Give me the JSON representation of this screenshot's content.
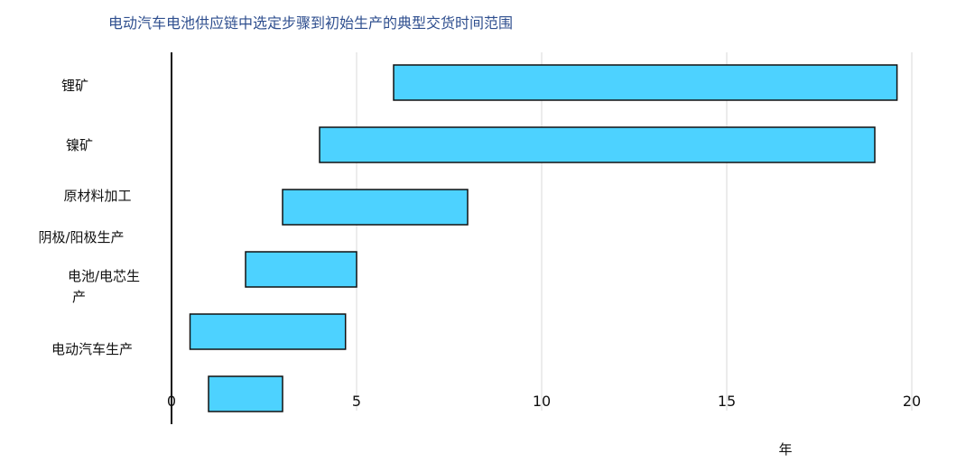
{
  "chart_data": {
    "type": "bar",
    "title": "电动汽车电池供应链中选定步骤到初始生产的典型交货时间范围",
    "xlabel": "年",
    "ylabel": "",
    "xlim": [
      0,
      20
    ],
    "xticks": [
      0,
      5,
      10,
      15,
      20
    ],
    "categories": [
      "锂矿",
      "镍矿",
      "原材料加工",
      "阴极/阳极生产",
      "电池/电芯生产",
      "电动汽车生产"
    ],
    "ranges": [
      [
        6,
        19.6
      ],
      [
        4,
        19
      ],
      [
        3,
        8
      ],
      [
        2,
        5
      ],
      [
        0.5,
        4.7
      ],
      [
        1,
        3
      ]
    ],
    "bar_color": "#4dd2ff",
    "grid": true,
    "legend": false
  }
}
